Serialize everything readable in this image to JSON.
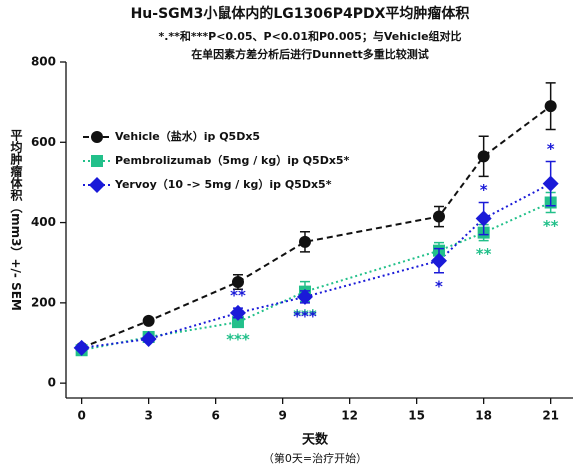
{
  "chart_data": {
    "type": "line",
    "title": "Hu-SGM3小鼠体内的LG1306P4PDX平均肿瘤体积",
    "subtitle": [
      "*.**和***P<0.05、P<0.01和P0.005；与Vehicle组对比",
      "在单因素方差分析后进行Dunnett多重比较测试"
    ],
    "xlabel": "天数",
    "xnote": "（第0天=治疗开始）",
    "ylabel": "平均肿瘤体积（mm3）+/- SEM",
    "x": [
      0,
      3,
      7,
      10,
      16,
      18,
      21
    ],
    "xlim": [
      -0.7,
      22
    ],
    "xticks": [
      0,
      3,
      6,
      9,
      12,
      15,
      18,
      21
    ],
    "ylim": [
      -37,
      800
    ],
    "yticks": [
      0,
      200,
      400,
      600,
      800
    ],
    "legend": "upper left",
    "series": [
      {
        "name": "Vehicle（盐水）ip Q5Dx5",
        "color": "#111111",
        "marker": "circle",
        "dash": "6,4",
        "values": [
          88,
          155,
          252,
          352,
          415,
          565,
          690
        ],
        "errors": [
          5,
          6,
          18,
          25,
          25,
          50,
          58
        ],
        "labels": [
          null,
          null,
          null,
          null,
          null,
          null,
          null
        ]
      },
      {
        "name": "Pembrolizumab（5mg / kg）ip Q5Dx5*",
        "color": "#22c08a",
        "marker": "square",
        "dash": "2,3",
        "values": [
          82,
          115,
          152,
          228,
          330,
          375,
          450
        ],
        "errors": [
          5,
          6,
          10,
          25,
          20,
          20,
          25
        ],
        "labels": [
          null,
          null,
          "***",
          "***",
          null,
          "**",
          "**"
        ]
      },
      {
        "name": "Yervoy（10 -> 5mg / kg）ip Q5Dx5*",
        "color": "#1a1ad8",
        "marker": "diamond",
        "dash": "2,3",
        "values": [
          88,
          110,
          175,
          215,
          305,
          410,
          497
        ],
        "errors": [
          5,
          6,
          12,
          15,
          30,
          40,
          55
        ],
        "labels": [
          null,
          null,
          "**",
          "***",
          "*",
          "*",
          "*"
        ]
      }
    ]
  }
}
